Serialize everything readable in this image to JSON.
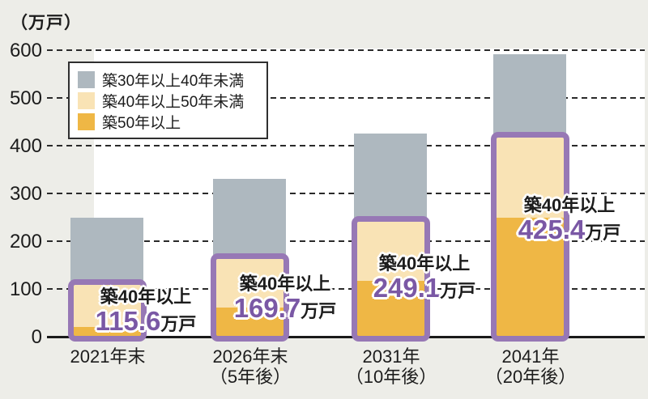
{
  "unit_label": "（万戸）",
  "y_axis": {
    "ticks": [
      "600",
      "500",
      "400",
      "300",
      "200",
      "100",
      "0"
    ]
  },
  "legend": {
    "items": [
      {
        "label": "築30年以上40年未満",
        "color": "#aeb8bf"
      },
      {
        "label": "築40年以上50年未満",
        "color": "#f9e3b5"
      },
      {
        "label": "築50年以上",
        "color": "#efb745"
      }
    ]
  },
  "chart_data": {
    "type": "bar",
    "stacked": true,
    "title": "",
    "ylabel": "（万戸）",
    "unit": "万戸",
    "ylim": [
      0,
      600
    ],
    "grid": true,
    "legend_position": "top-left",
    "categories": [
      [
        "2021年末"
      ],
      [
        "2026年末",
        "（5年後）"
      ],
      [
        "2031年",
        "（10年後）"
      ],
      [
        "2041年",
        "（20年後）"
      ]
    ],
    "series": [
      {
        "name": "築50年以上",
        "color": "#efb745",
        "values": [
          20.0,
          60.0,
          115.6,
          249.1
        ]
      },
      {
        "name": "築40年以上50年未満",
        "color": "#f9e3b5",
        "values": [
          95.6,
          109.7,
          133.5,
          176.3
        ]
      },
      {
        "name": "築30年以上40年未満",
        "color": "#aeb8bf",
        "values": [
          133.5,
          160.3,
          176.3,
          164.6
        ]
      }
    ],
    "bar_totals": [
      249.1,
      330.0,
      425.4,
      590.0
    ],
    "highlights": [
      {
        "label": "築40年以上",
        "value": "115.6",
        "unit": "万戸",
        "total": 115.6
      },
      {
        "label": "築40年以上",
        "value": "169.7",
        "unit": "万戸",
        "total": 169.7
      },
      {
        "label": "築40年以上",
        "value": "249.1",
        "unit": "万戸",
        "total": 249.1
      },
      {
        "label": "築40年以上",
        "value": "425.4",
        "unit": "万戸",
        "total": 425.4
      }
    ],
    "highlight_box_color": "#9778b5",
    "highlight_value_color": "#7a58a5"
  }
}
